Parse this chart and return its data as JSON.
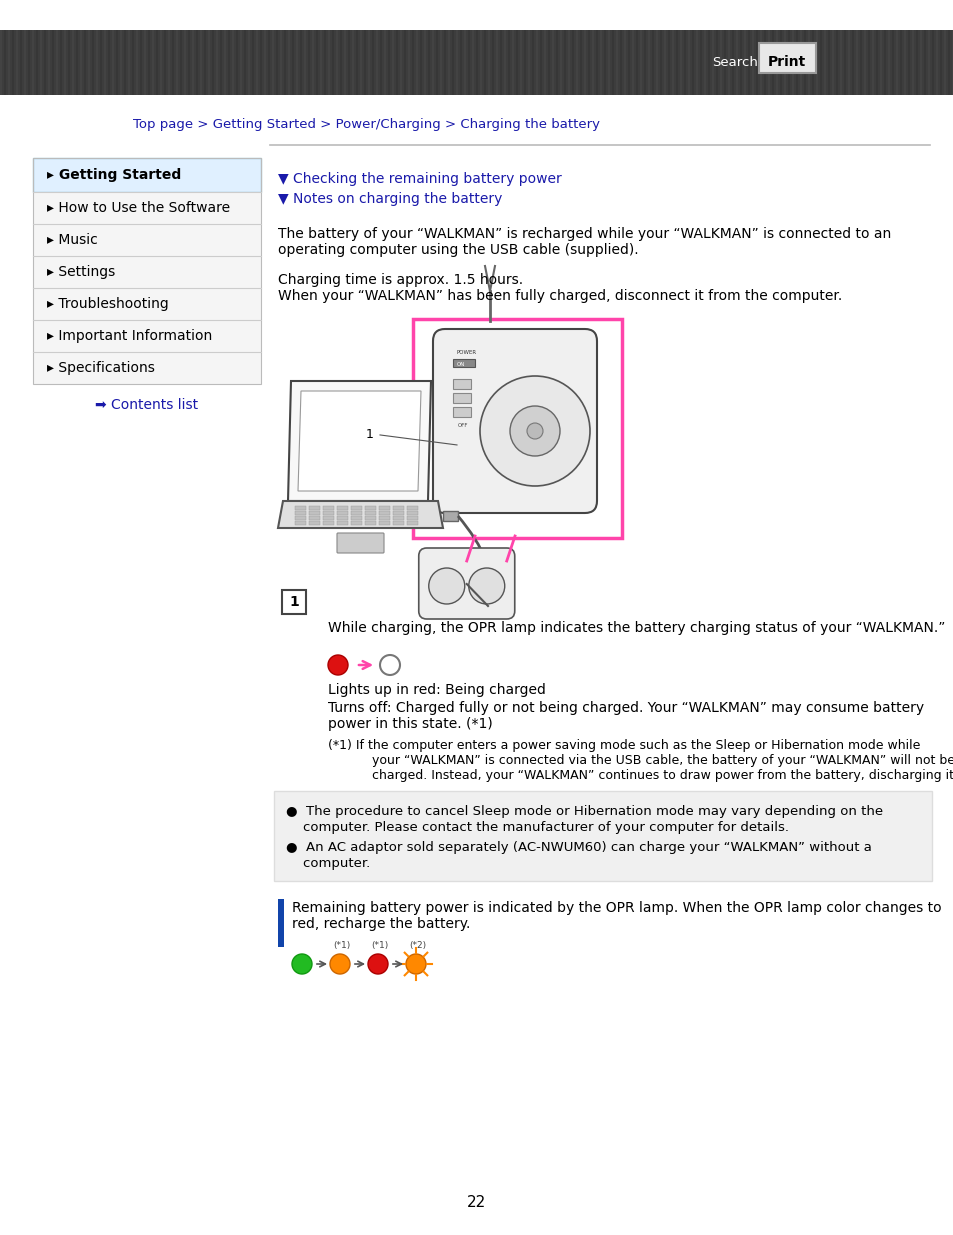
{
  "bg_color": "#ffffff",
  "header_bg": "#3a3a3a",
  "breadcrumb_color": "#1a1aaa",
  "breadcrumb_text": "Top page > Getting Started > Power/Charging > Charging the battery",
  "sidebar_items": [
    {
      "text": "Getting Started",
      "active": true
    },
    {
      "text": "How to Use the Software",
      "active": false
    },
    {
      "text": "Music",
      "active": false
    },
    {
      "text": "Settings",
      "active": false
    },
    {
      "text": "Troubleshooting",
      "active": false
    },
    {
      "text": "Important Information",
      "active": false
    },
    {
      "text": "Specifications",
      "active": false
    }
  ],
  "contents_list_color": "#1a1aaa",
  "link_color": "#1a1aaa",
  "link1": "▼ Checking the remaining battery power",
  "link2": "▼ Notes on charging the battery",
  "body_text1a": "The battery of your “WALKMAN” is recharged while your “WALKMAN” is connected to an",
  "body_text1b": "operating computer using the USB cable (supplied).",
  "body_text2a": "Charging time is approx. 1.5 hours.",
  "body_text2b": "When your “WALKMAN” has been fully charged, disconnect it from the computer.",
  "step_label": "1",
  "step_desc": "While charging, the OPR lamp indicates the battery charging status of your “WALKMAN.”",
  "lights_red_label": "Lights up in red: Being charged",
  "turns_off_line1": "Turns off: Charged fully or not being charged. Your “WALKMAN” may consume battery",
  "turns_off_line2": "power in this state. (*1)",
  "fn_line1": "(*1) If the computer enters a power saving mode such as the Sleep or Hibernation mode while",
  "fn_line2": "      your “WALKMAN” is connected via the USB cable, the battery of your “WALKMAN” will not be",
  "fn_line3": "      charged. Instead, your “WALKMAN” continues to draw power from the battery, discharging it.",
  "note_bg": "#f0f0f0",
  "note_line1a": "●  The procedure to cancel Sleep mode or Hibernation mode may vary depending on the",
  "note_line1b": "    computer. Please contact the manufacturer of your computer for details.",
  "note_line2a": "●  An AC adaptor sold separately (AC-NWUM60) can charge your “WALKMAN” without a",
  "note_line2b": "    computer.",
  "section2_bar_color": "#1144aa",
  "section2_line1": "Remaining battery power is indicated by the OPR lamp. When the OPR lamp color changes to",
  "section2_line2": "red, recharge the battery.",
  "page_number": "22",
  "arrow_color": "#ff44aa",
  "pink_border": "#ff44aa"
}
